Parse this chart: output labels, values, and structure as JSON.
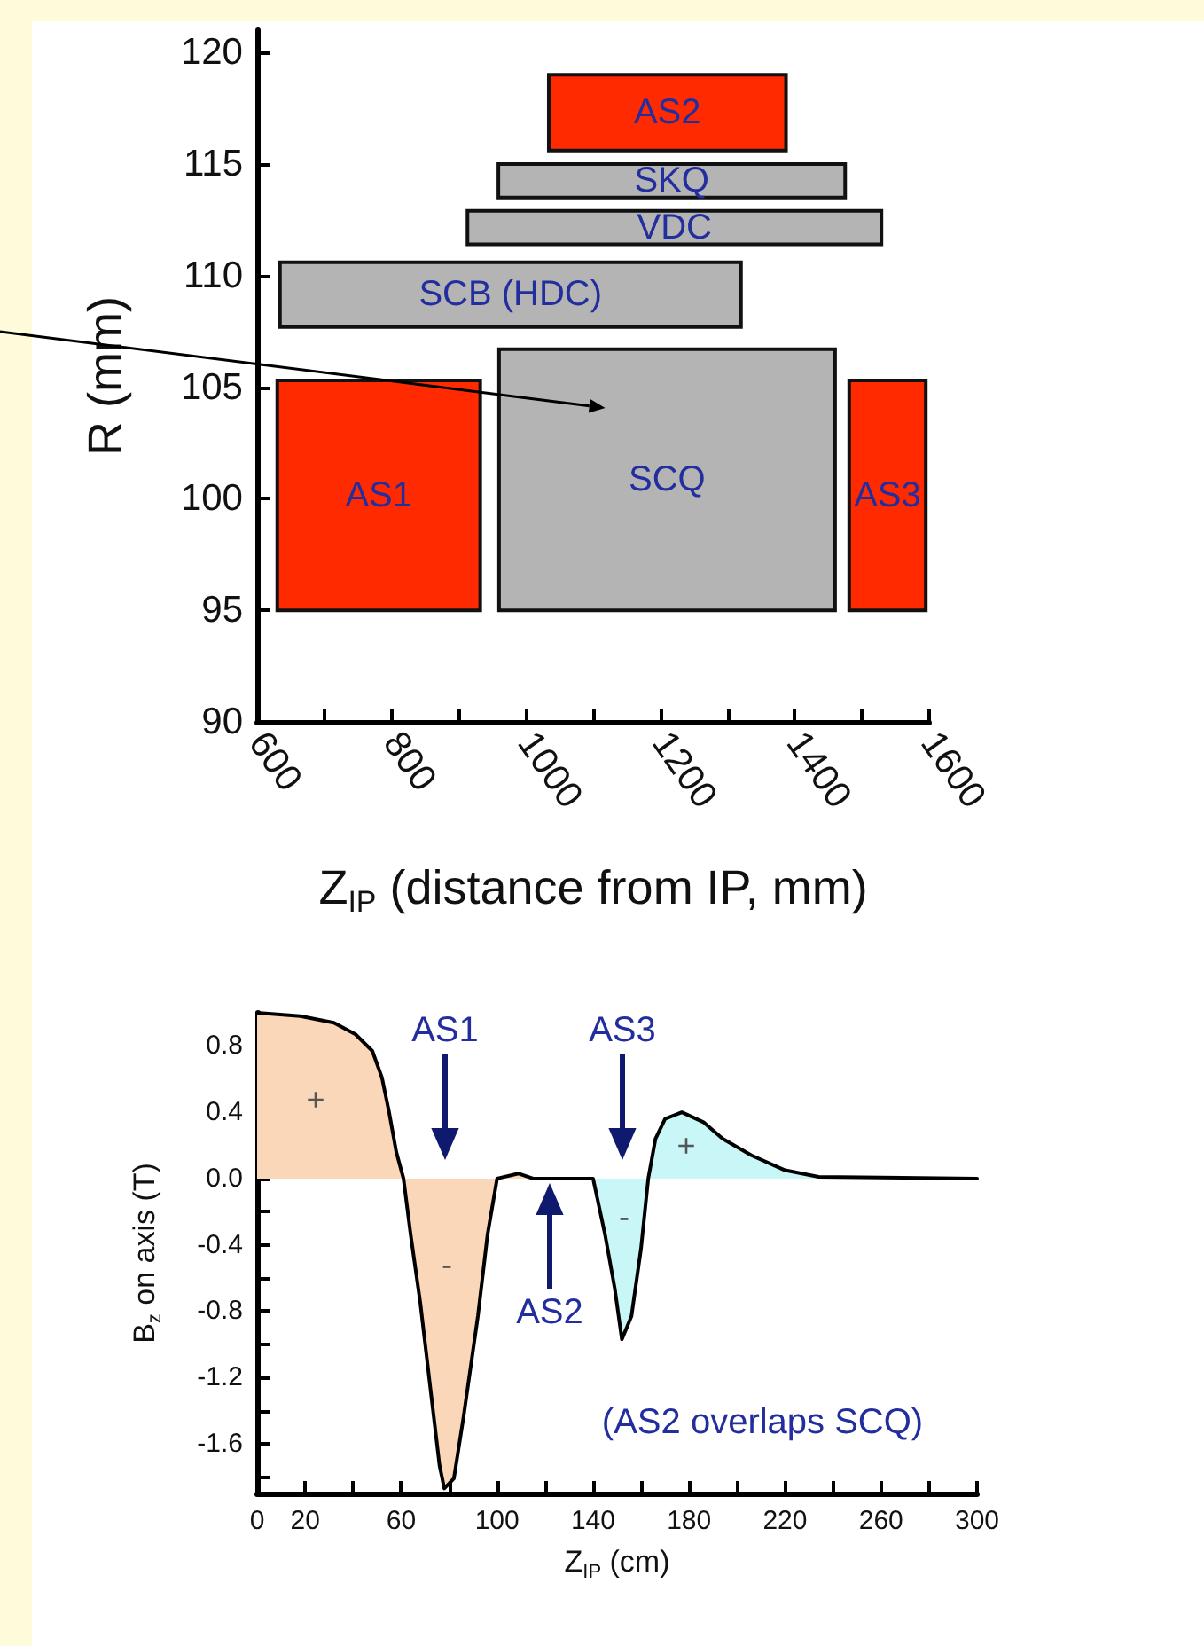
{
  "chart_data": [
    {
      "type": "area",
      "xlabel": "Z$_{IP}$ (distance from IP, mm)",
      "ylabel": "R (mm)",
      "xlim": [
        600,
        1600
      ],
      "xticks": [
        600,
        {
          "value": 700,
          "label": null
        },
        800,
        {
          "value": 900,
          "label": null
        },
        1000,
        {
          "value": 1100,
          "label": null
        },
        1200,
        {
          "value": 1300,
          "label": null
        },
        1400,
        {
          "value": 1500,
          "label": null
        },
        1600
      ],
      "ylim": [
        90,
        121
      ],
      "yticks": [
        90,
        95,
        100,
        105,
        110,
        115,
        120
      ],
      "series": [
        {
          "name": "AS1",
          "color": "#ff2a00",
          "x": [
            630,
            932,
            932,
            630,
            630
          ],
          "values": [
            95,
            95,
            105.3,
            105.3,
            95
          ]
        },
        {
          "name": "SCQ",
          "color": "#b4b4b4",
          "x": [
            960,
            1460,
            1460,
            960,
            960
          ],
          "values": [
            95,
            95,
            106.7,
            106.7,
            95
          ]
        },
        {
          "name": "AS3",
          "color": "#ff2a00",
          "x": [
            1481,
            1595,
            1595,
            1481,
            1481
          ],
          "values": [
            95,
            95,
            105.3,
            105.3,
            95
          ]
        },
        {
          "name": "SCB (HDC)",
          "color": "#b4b4b4",
          "x": [
            634,
            1320,
            1320,
            634,
            634
          ],
          "values": [
            107.7,
            107.7,
            110.6,
            110.6,
            107.7
          ]
        },
        {
          "name": "VDC",
          "color": "#b4b4b4",
          "x": [
            913,
            1529,
            1529,
            913,
            913
          ],
          "values": [
            111.4,
            111.4,
            112.9,
            112.9,
            111.4
          ]
        },
        {
          "name": "SKQ",
          "color": "#b4b4b4",
          "x": [
            959,
            1475,
            1475,
            959,
            959
          ],
          "values": [
            113.5,
            113.5,
            115,
            115,
            113.5
          ]
        },
        {
          "name": "AS2",
          "color": "#ff2a00",
          "x": [
            1034,
            1387,
            1387,
            1034,
            1034
          ],
          "values": [
            115.6,
            115.6,
            119,
            119,
            115.6
          ]
        }
      ]
    },
    {
      "type": "area",
      "xlabel": "Z$_{IP}$ (cm)",
      "ylabel": "B$_{z}$ on axis (T)",
      "xlim": [
        0,
        300
      ],
      "ylim": [
        -1.9,
        1.0
      ],
      "xticks": [
        0,
        20,
        {
          "value": 40,
          "label": null
        },
        60,
        {
          "value": 80,
          "label": null
        },
        100,
        {
          "value": 120,
          "label": null
        },
        140,
        {
          "value": 160,
          "label": null
        },
        180,
        {
          "value": 200,
          "label": null
        },
        220,
        {
          "value": 240,
          "label": null
        },
        260,
        {
          "value": 280,
          "label": null
        },
        300
      ],
      "yticks": [
        {
          "value": -1.8,
          "label": null
        },
        {
          "value": -1.6,
          "label": "-1.6"
        },
        {
          "value": -1.4,
          "label": null
        },
        {
          "value": -1.2,
          "label": "-1.2"
        },
        {
          "value": -1,
          "label": null
        },
        {
          "value": -0.8,
          "label": "-0.8"
        },
        {
          "value": -0.6,
          "label": null
        },
        {
          "value": -0.4,
          "label": "-0.4"
        },
        {
          "value": -0.2,
          "label": null
        },
        {
          "value": 0,
          "label": "0.0"
        },
        {
          "value": 0.2,
          "label": null
        },
        {
          "value": 0.4,
          "label": "0.4"
        },
        {
          "value": 0.6,
          "label": null
        },
        {
          "value": 0.8,
          "label": "0.8"
        }
      ],
      "annotations": [
        "AS1",
        "AS2",
        "AS3",
        "(AS2 overlaps SCQ)",
        "+",
        "-",
        "-",
        "+"
      ],
      "series": [
        {
          "color": "#fbd7b9",
          "x": [
            0,
            18,
            32,
            41,
            48,
            52,
            55,
            58,
            61,
            64,
            68,
            72,
            76,
            78,
            82,
            86,
            92,
            96,
            100,
            109,
            115
          ],
          "values": [
            1.0,
            0.98,
            0.94,
            0.87,
            0.77,
            0.61,
            0.4,
            0.16,
            0,
            -0.34,
            -0.75,
            -1.24,
            -1.73,
            -1.87,
            -1.81,
            -1.44,
            -0.83,
            -0.34,
            0,
            0.03,
            0
          ]
        },
        {
          "color": "#c9f7f7",
          "x": [
            115,
            140,
            145,
            149,
            152,
            156,
            160,
            163,
            166,
            170,
            177,
            186,
            194,
            206,
            220,
            234,
            300
          ],
          "values": [
            0,
            0,
            -0.34,
            -0.66,
            -0.97,
            -0.83,
            -0.42,
            0,
            0.24,
            0.36,
            0.4,
            0.34,
            0.24,
            0.14,
            0.05,
            0.01,
            0
          ]
        }
      ]
    }
  ]
}
